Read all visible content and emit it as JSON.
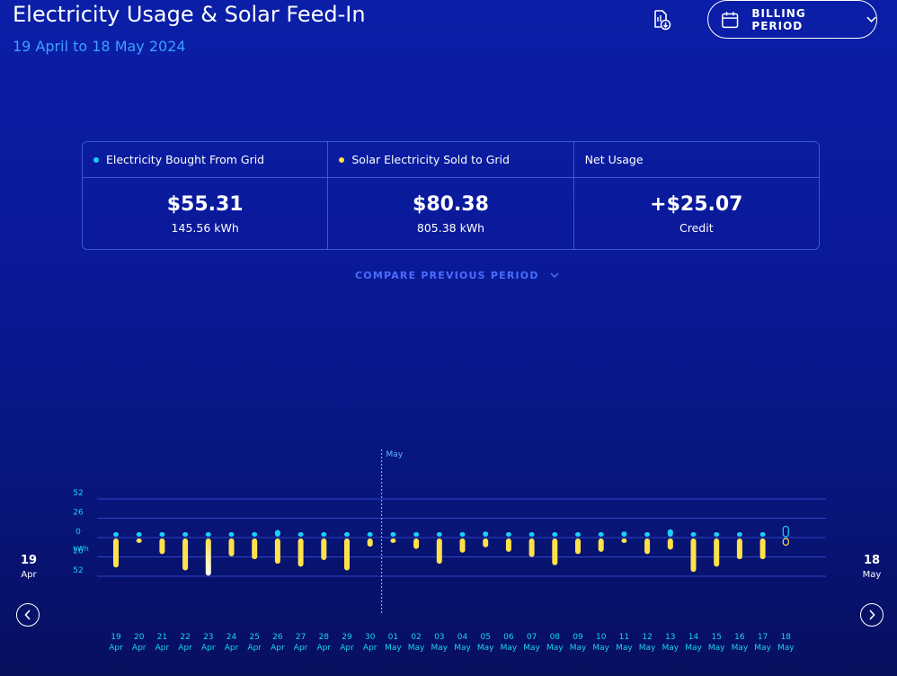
{
  "header": {
    "title": "Electricity Usage & Solar Feed-In",
    "subtitle": "19 April to 18 May 2024",
    "billing_label": "BILLING PERIOD"
  },
  "summary": [
    {
      "label": "Electricity Bought From Grid",
      "dot_color": "#19d3f5",
      "amount": "$55.31",
      "sub": "145.56 kWh"
    },
    {
      "label": "Solar Electricity Sold to Grid",
      "dot_color": "#ffe24a",
      "amount": "$80.38",
      "sub": "805.38 kWh"
    },
    {
      "label": "Net Usage",
      "dot_color": null,
      "amount": "+$25.07",
      "sub": "Credit"
    }
  ],
  "compare_label": "COMPARE PREVIOUS PERIOD",
  "colors": {
    "grid": "#19d3f5",
    "solar": "#ffe24a",
    "axis_text": "#19d3f5",
    "accent": "#3fa0ff"
  },
  "nav": {
    "left": {
      "day": "19",
      "month": "Apr"
    },
    "right": {
      "day": "18",
      "month": "May"
    }
  },
  "chart_data": {
    "type": "bar",
    "title": "",
    "ylabel": "kWh",
    "unit": "kWh",
    "yticks": [
      "52",
      "26",
      "0",
      "26",
      "52"
    ],
    "ylim": [
      -52,
      52
    ],
    "marker_label": "May",
    "marker_after_index": 11,
    "categories": [
      {
        "day": "19",
        "month": "Apr"
      },
      {
        "day": "20",
        "month": "Apr"
      },
      {
        "day": "21",
        "month": "Apr"
      },
      {
        "day": "22",
        "month": "Apr"
      },
      {
        "day": "23",
        "month": "Apr"
      },
      {
        "day": "24",
        "month": "Apr"
      },
      {
        "day": "25",
        "month": "Apr"
      },
      {
        "day": "26",
        "month": "Apr"
      },
      {
        "day": "27",
        "month": "Apr"
      },
      {
        "day": "28",
        "month": "Apr"
      },
      {
        "day": "29",
        "month": "Apr"
      },
      {
        "day": "30",
        "month": "Apr"
      },
      {
        "day": "01",
        "month": "May"
      },
      {
        "day": "02",
        "month": "May"
      },
      {
        "day": "03",
        "month": "May"
      },
      {
        "day": "04",
        "month": "May"
      },
      {
        "day": "05",
        "month": "May"
      },
      {
        "day": "06",
        "month": "May"
      },
      {
        "day": "07",
        "month": "May"
      },
      {
        "day": "08",
        "month": "May"
      },
      {
        "day": "09",
        "month": "May"
      },
      {
        "day": "10",
        "month": "May"
      },
      {
        "day": "11",
        "month": "May"
      },
      {
        "day": "12",
        "month": "May"
      },
      {
        "day": "13",
        "month": "May"
      },
      {
        "day": "14",
        "month": "May"
      },
      {
        "day": "15",
        "month": "May"
      },
      {
        "day": "16",
        "month": "May"
      },
      {
        "day": "17",
        "month": "May"
      },
      {
        "day": "18",
        "month": "May"
      }
    ],
    "series": [
      {
        "name": "Electricity Bought From Grid",
        "values": [
          4,
          4,
          4,
          3,
          4,
          4,
          4,
          9,
          4,
          4,
          3,
          5,
          4,
          5,
          4,
          4,
          7,
          4,
          5,
          4,
          4,
          4,
          7,
          3,
          10,
          3,
          4,
          5,
          4,
          14
        ],
        "last_pending": true
      },
      {
        "name": "Solar Electricity Sold to Grid",
        "values": [
          39,
          4,
          21,
          43,
          50,
          24,
          28,
          34,
          38,
          29,
          43,
          11,
          6,
          14,
          34,
          19,
          12,
          18,
          25,
          36,
          21,
          18,
          5,
          21,
          15,
          45,
          38,
          28,
          28,
          9
        ],
        "last_pending": true
      }
    ]
  }
}
